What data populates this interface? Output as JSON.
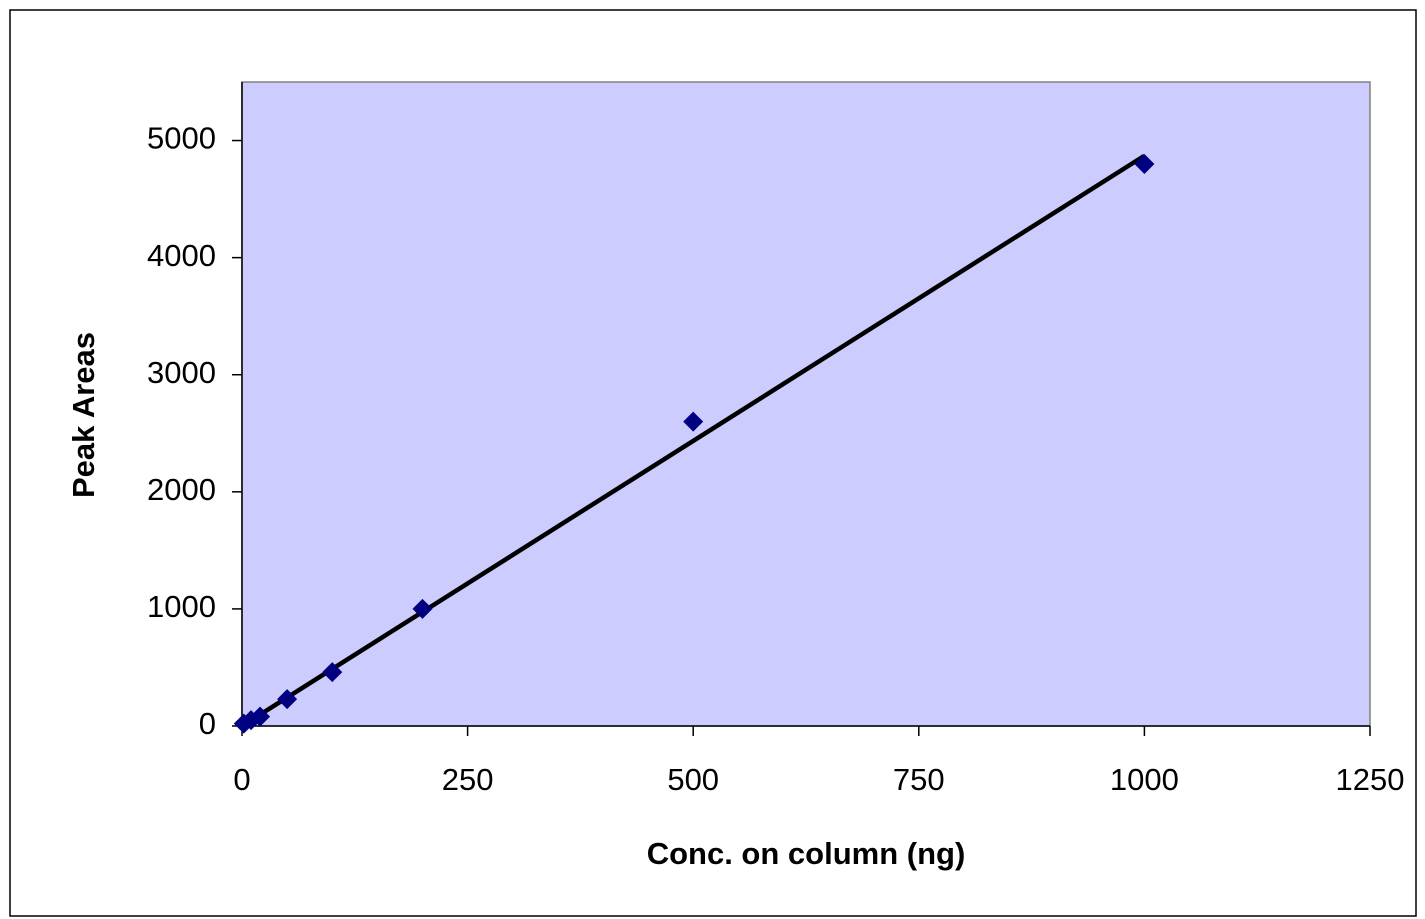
{
  "chart_data": {
    "type": "scatter",
    "x_label": "Conc. on column (ng)",
    "y_label": "Peak Areas",
    "x": [
      2,
      10,
      20,
      50,
      100,
      200,
      500,
      1000
    ],
    "values": [
      20,
      50,
      80,
      230,
      460,
      1000,
      2600,
      4800
    ],
    "color": "#000080",
    "trendline": {
      "x": [
        0,
        1000
      ],
      "values": [
        0,
        4870
      ],
      "color": "#000000"
    },
    "xlim": [
      0,
      1250
    ],
    "xticks": [
      0,
      250,
      500,
      750,
      1000,
      1250
    ],
    "ylim": [
      0,
      5500
    ],
    "yticks": [
      0,
      1000,
      2000,
      3000,
      4000,
      5000
    ],
    "plot_background": "#ccccff"
  }
}
